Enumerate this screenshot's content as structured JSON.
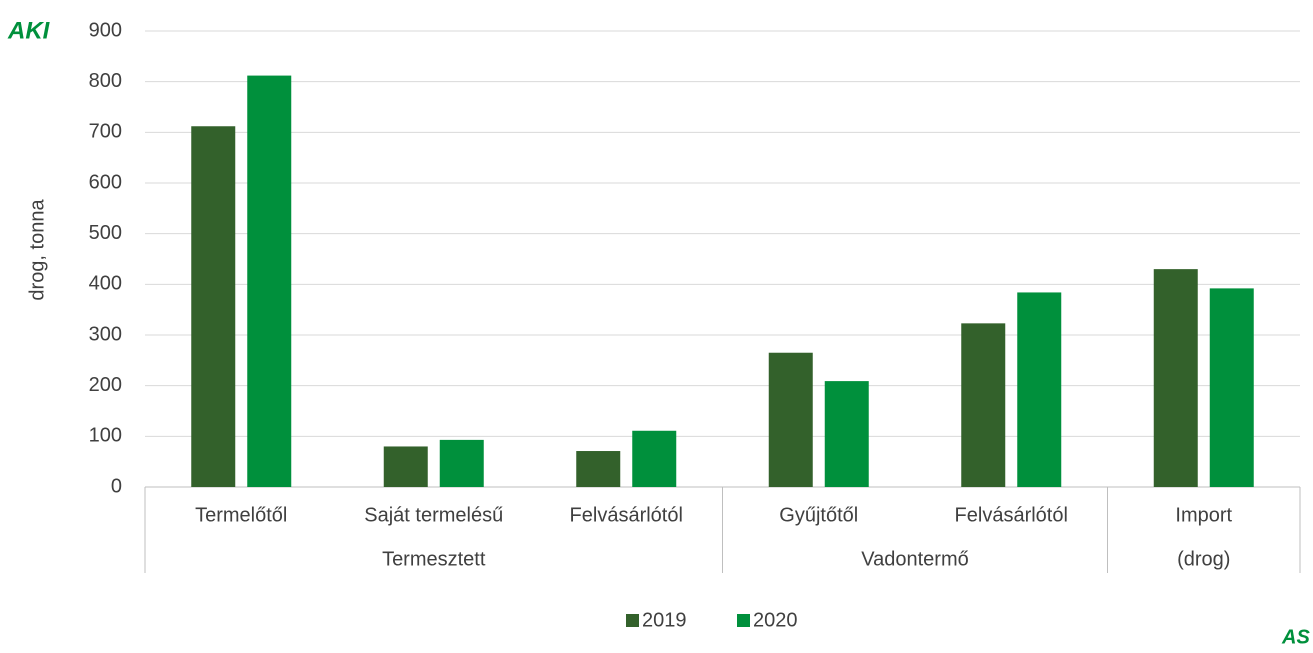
{
  "logo_top": "AKI",
  "logo_bottom": "AS",
  "chart_data": {
    "type": "bar",
    "ylabel": "drog, tonna",
    "categories": [
      "Termelőtől",
      "Saját termelésű",
      "Felvásárlótól",
      "Gyűjtőtől",
      "Felvásárlótól",
      "Import"
    ],
    "groups": [
      "Termesztett",
      "Termesztett",
      "Termesztett",
      "Vadontermő",
      "Vadontermő",
      "(drog)"
    ],
    "series": [
      {
        "name": "2019",
        "color": "#33612b",
        "values": [
          712,
          80,
          71,
          265,
          323,
          430
        ]
      },
      {
        "name": "2020",
        "color": "#00903c",
        "values": [
          812,
          93,
          111,
          209,
          384,
          392
        ]
      }
    ],
    "ylim": [
      0,
      900
    ],
    "yticks": [
      0,
      100,
      200,
      300,
      400,
      500,
      600,
      700,
      800,
      900
    ],
    "grid": true,
    "legend": "bottom"
  }
}
